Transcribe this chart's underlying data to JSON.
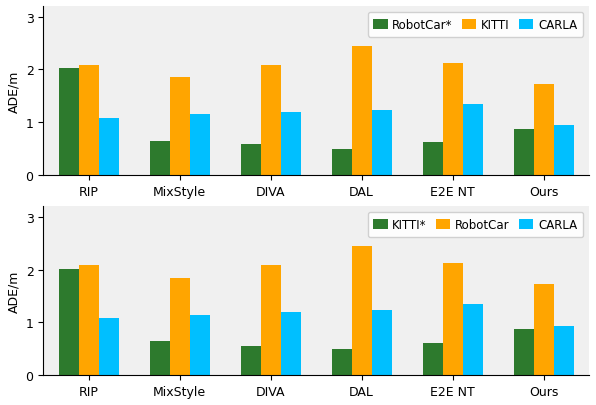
{
  "top": {
    "legend": [
      "RobotCar*",
      "KITTI",
      "CARLA"
    ],
    "legend_colors": [
      "#2d7a2d",
      "#ffa500",
      "#00bfff"
    ],
    "categories": [
      "RIP",
      "MixStyle",
      "DIVA",
      "DAL",
      "E2E NT",
      "Ours"
    ],
    "values": {
      "RobotCar*": [
        2.02,
        0.65,
        0.58,
        0.5,
        0.63,
        0.87
      ],
      "KITTI": [
        2.08,
        1.85,
        2.08,
        2.45,
        2.12,
        1.72
      ],
      "CARLA": [
        1.08,
        1.15,
        1.19,
        1.23,
        1.35,
        0.94
      ]
    },
    "ylabel": "ADE/m",
    "ylim": [
      0,
      3.2
    ],
    "yticks": [
      0,
      1,
      2,
      3
    ]
  },
  "bottom": {
    "legend": [
      "KITTI*",
      "RobotCar",
      "CARLA"
    ],
    "legend_colors": [
      "#2d7a2d",
      "#ffa500",
      "#00bfff"
    ],
    "categories": [
      "RIP",
      "MixStyle",
      "DIVA",
      "DAL",
      "E2E NT",
      "Ours"
    ],
    "values": {
      "KITTI*": [
        2.02,
        0.65,
        0.55,
        0.49,
        0.62,
        0.87
      ],
      "RobotCar": [
        2.08,
        1.84,
        2.08,
        2.45,
        2.12,
        1.72
      ],
      "CARLA": [
        1.08,
        1.15,
        1.19,
        1.23,
        1.35,
        0.94
      ]
    },
    "ylabel": "ADE/m",
    "ylim": [
      0,
      3.2
    ],
    "yticks": [
      0,
      1,
      2,
      3
    ]
  },
  "bar_width": 0.22,
  "figsize": [
    5.96,
    4.06
  ],
  "dpi": 100,
  "legend_fontsize": 8.5,
  "tick_fontsize": 9,
  "ylabel_fontsize": 9,
  "background_color": "#f0f0f0"
}
